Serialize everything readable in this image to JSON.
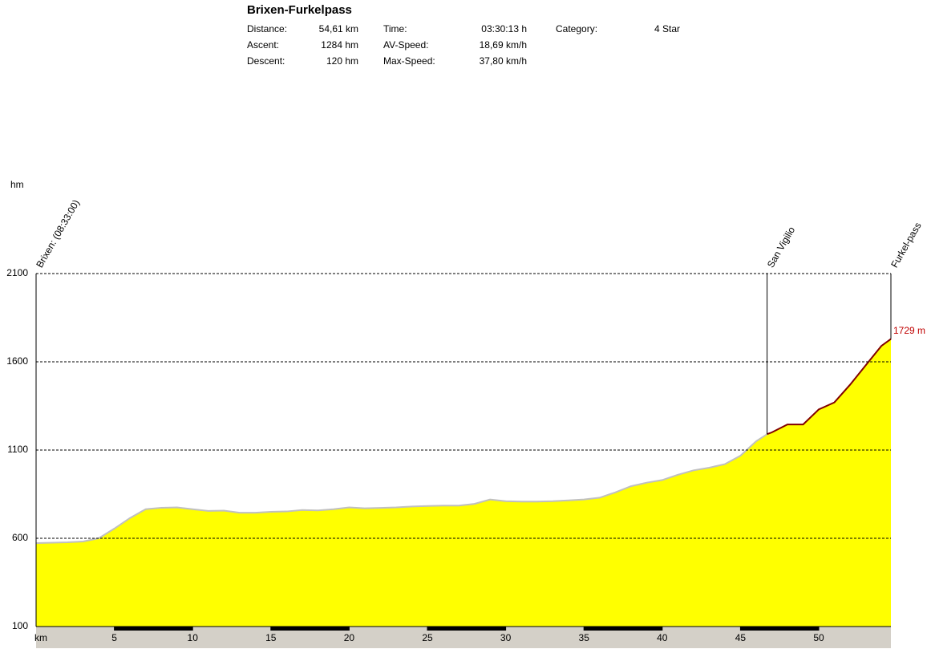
{
  "header": {
    "title": "Brixen-Furkelpass",
    "stats": [
      [
        [
          "Distance:",
          "54,61 km"
        ],
        [
          "Time:",
          "03:30:13 h"
        ],
        [
          "Category:",
          "4 Star"
        ]
      ],
      [
        [
          "Ascent:",
          "1284 hm"
        ],
        [
          "AV-Speed:",
          "18,69 km/h"
        ]
      ],
      [
        [
          "Descent:",
          "120 hm"
        ],
        [
          "Max-Speed:",
          "37,80 km/h"
        ]
      ]
    ]
  },
  "chart_data": {
    "type": "area",
    "y_label": "hm",
    "x_label": "km",
    "x": [
      0,
      1,
      2,
      3,
      4,
      5,
      6,
      7,
      8,
      9,
      10,
      11,
      12,
      13,
      14,
      15,
      16,
      17,
      18,
      19,
      20,
      21,
      22,
      23,
      24,
      25,
      26,
      27,
      28,
      29,
      30,
      31,
      32,
      33,
      34,
      35,
      36,
      37,
      38,
      39,
      40,
      41,
      42,
      43,
      44,
      45,
      46,
      46.7,
      47,
      48,
      49,
      50,
      51,
      52,
      53,
      54,
      54.61
    ],
    "values": [
      573,
      575,
      577,
      582,
      600,
      655,
      715,
      765,
      773,
      775,
      765,
      755,
      757,
      745,
      745,
      750,
      752,
      760,
      758,
      765,
      775,
      770,
      772,
      775,
      780,
      783,
      785,
      785,
      795,
      820,
      810,
      808,
      808,
      810,
      815,
      820,
      830,
      860,
      895,
      915,
      930,
      960,
      985,
      1000,
      1020,
      1068,
      1150,
      1190,
      1200,
      1245,
      1245,
      1330,
      1370,
      1470,
      1580,
      1690,
      1729
    ],
    "color": "#ffff00",
    "line_color": "#c0c0c0",
    "climb_color": "#800000",
    "xlim": [
      0,
      54.61
    ],
    "ylim": [
      100,
      2100
    ],
    "xticks": [
      5,
      10,
      15,
      20,
      25,
      30,
      35,
      40,
      45,
      50
    ],
    "yticks": [
      100,
      600,
      1100,
      1600,
      2100
    ],
    "grid": true,
    "markers": [
      {
        "x": 0,
        "label": "Brixen: (08:33:00)"
      },
      {
        "x": 46.7,
        "label": "San Vigilio"
      },
      {
        "x": 54.61,
        "label": "Furkel-pass"
      }
    ],
    "end_label": "1729 m"
  }
}
